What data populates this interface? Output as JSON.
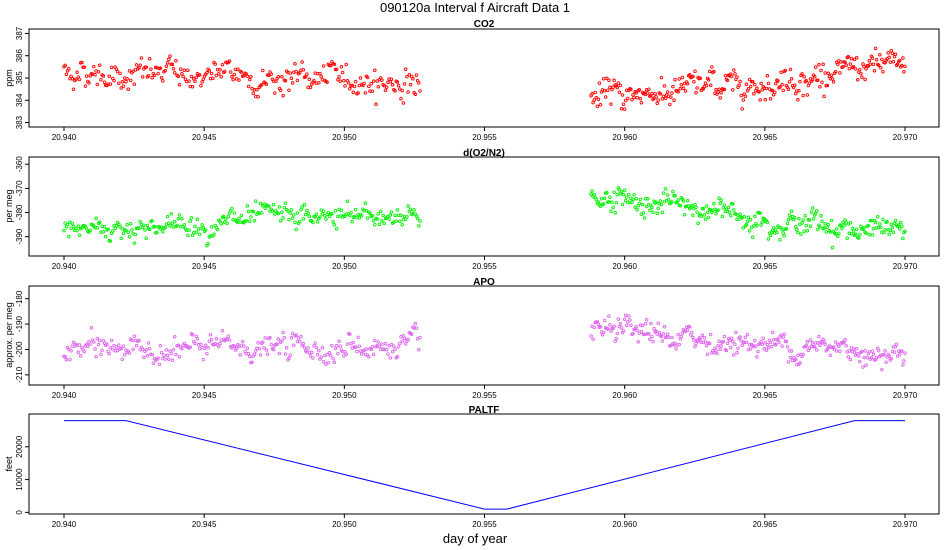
{
  "title": "090120a   Interval f Aircraft Data 1",
  "xlabel": "day of year",
  "x_ticks": [
    "20.940",
    "20.945",
    "20.950",
    "20.955",
    "20.960",
    "20.965",
    "20.970"
  ],
  "colors": {
    "co2": "#ff0000",
    "o2n2": "#00ee00",
    "apo": "#dd66ee",
    "paltf": "#0000ff"
  },
  "chart_data": [
    {
      "type": "scatter",
      "title": "CO2",
      "ylabel": "ppm",
      "xlim": [
        20.939,
        20.971
      ],
      "ylim": [
        382.8,
        387.2
      ],
      "y_ticks": [
        383,
        384,
        385,
        386,
        387
      ],
      "segments": [
        {
          "x_start": 20.94,
          "x_end": 20.9527,
          "start": 385.3,
          "end": 384.8,
          "noise": 0.45
        },
        {
          "x_start": 20.9588,
          "x_end": 20.97,
          "start": 384.1,
          "end": 385.5,
          "noise": 0.45
        }
      ],
      "points_per_segment": 300
    },
    {
      "type": "scatter",
      "title": "d(O2/N2)",
      "ylabel": "per meg",
      "xlim": [
        20.939,
        20.971
      ],
      "ylim": [
        -398,
        -357
      ],
      "y_ticks": [
        -360,
        -370,
        -380,
        -390
      ],
      "segments": [
        {
          "x_start": 20.94,
          "x_end": 20.9527,
          "start": -387,
          "end": -381,
          "noise": 3.5
        },
        {
          "x_start": 20.9588,
          "x_end": 20.97,
          "start": -373,
          "end": -389,
          "noise": 3.5
        }
      ],
      "points_per_segment": 300
    },
    {
      "type": "scatter",
      "title": "APO",
      "ylabel": "approx. per meg",
      "xlim": [
        20.939,
        20.971
      ],
      "ylim": [
        -214,
        -175
      ],
      "y_ticks": [
        -180,
        -190,
        -200,
        -210
      ],
      "segments": [
        {
          "x_start": 20.94,
          "x_end": 20.9527,
          "start": -200,
          "end": -199,
          "noise": 3.5
        },
        {
          "x_start": 20.9588,
          "x_end": 20.97,
          "start": -194,
          "end": -201,
          "noise": 3.5
        }
      ],
      "points_per_segment": 300
    },
    {
      "type": "line",
      "title": "PALTF",
      "ylabel": "feet",
      "xlim": [
        20.939,
        20.971
      ],
      "ylim": [
        -500,
        30000
      ],
      "y_ticks": [
        0,
        10000,
        20000
      ],
      "x": [
        20.94,
        20.9422,
        20.955,
        20.9558,
        20.9682,
        20.97
      ],
      "y": [
        28000,
        28000,
        1000,
        1000,
        28000,
        28000
      ]
    }
  ]
}
